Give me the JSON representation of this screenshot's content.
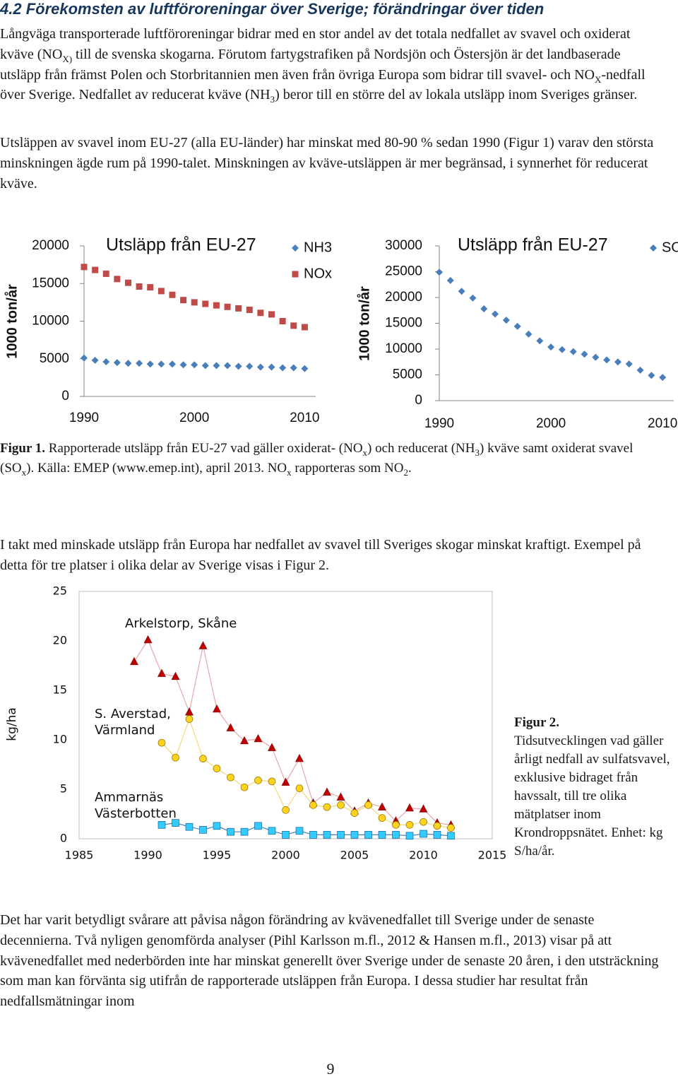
{
  "heading": "4.2 Förekomsten av luftföroreningar över Sverige; förändringar över tiden",
  "paragraphs": [
    [
      "Långväga transporterade luftföroreningar bidrar med en stor andel av det totala nedfallet av svavel och oxiderat kväve (NO",
      {
        "sub": "X)"
      },
      " till de svenska skogarna. Förutom fartygstrafiken på Nordsjön och Östersjön är det landbaserade utsläpp från främst Polen och Storbritannien men även från övriga Europa som bidrar till svavel- och NO",
      {
        "sub": "X"
      },
      "-nedfall över Sverige. Nedfallet av reducerat kväve (NH",
      {
        "sub": "3"
      },
      ") beror till en större del av lokala utsläpp inom Sveriges gränser."
    ],
    [
      "Utsläppen av svavel inom EU-27 (alla EU-länder) har minskat med 80-90 % sedan 1990 (Figur 1) varav den största minskningen ägde rum på 1990-talet. Minskningen av kväve-utsläppen är mer begränsad, i synnerhet för reducerat kväve."
    ],
    [
      "I takt med minskade utsläpp från Europa har nedfallet av svavel till Sveriges skogar minskat kraftigt. Exempel på detta för tre platser i olika delar av Sverige visas i Figur 2."
    ],
    [
      "Det har varit betydligt svårare att påvisa någon förändring av kvävenedfallet till Sverige under de senaste decennierna. Två nyligen genomförda analyser (Pihl Karlsson m.fl., 2012 & Hansen m.fl., 2013) visar på att kvävenedfallet med nederbörden inte har minskat generellt över Sverige under de senaste 20 åren, i den utsträckning som man kan förvänta sig utifrån de rapporterade utsläppen från Europa. I dessa studier har resultat från nedfallsmätningar inom"
    ]
  ],
  "figure1_caption": [
    {
      "b": "Figur 1."
    },
    " Rapporterade utsläpp från EU-27 vad gäller oxiderat- (NO",
    {
      "sub": "x"
    },
    ") och reducerat (NH",
    {
      "sub": "3"
    },
    ") kväve samt oxiderat svavel (SO",
    {
      "sub": "x"
    },
    "). Källa: EMEP (www.emep.int), april 2013. NO",
    {
      "sub": "x"
    },
    " rapporteras som NO",
    {
      "sub": "2"
    },
    "."
  ],
  "figure2_caption": {
    "label": "Figur 2.",
    "text": "Tidsutvecklingen vad gäller årligt nedfall av sulfatsvavel, exklusive bidraget från havssalt, till tre olika mätplatser inom Krondroppsnätet. Enhet: kg S/ha/år."
  },
  "page_number": "9",
  "chart_data": [
    {
      "type": "scatter",
      "title": "Utsläpp från EU-27",
      "y_label": "1000 ton/år",
      "legend": true,
      "x": [
        1990,
        1991,
        1992,
        1993,
        1994,
        1995,
        1996,
        1997,
        1998,
        1999,
        2000,
        2001,
        2002,
        2003,
        2004,
        2005,
        2006,
        2007,
        2008,
        2009,
        2010
      ],
      "xlim": [
        1990,
        2011
      ],
      "xticks": [
        1990,
        2000,
        2010
      ],
      "ylim": [
        0,
        20000
      ],
      "yticks": [
        0,
        5000,
        10000,
        15000,
        20000
      ],
      "series": [
        {
          "name": "NH3",
          "color": "#4a7ebb",
          "marker": "diamond",
          "values": [
            5100,
            4800,
            4600,
            4500,
            4400,
            4400,
            4300,
            4300,
            4300,
            4200,
            4200,
            4100,
            4100,
            4100,
            4000,
            4000,
            3900,
            3900,
            3800,
            3800,
            3700
          ]
        },
        {
          "name": "NOx",
          "color": "#be4b48",
          "marker": "square",
          "values": [
            17200,
            16800,
            16300,
            15600,
            15100,
            14600,
            14500,
            14000,
            13500,
            12800,
            12500,
            12300,
            12100,
            11900,
            11700,
            11500,
            11100,
            10900,
            10000,
            9400,
            9200
          ]
        }
      ]
    },
    {
      "type": "scatter",
      "title": "Utsläpp från EU-27",
      "y_label": "1000 ton/år",
      "legend": true,
      "x": [
        1990,
        1991,
        1992,
        1993,
        1994,
        1995,
        1996,
        1997,
        1998,
        1999,
        2000,
        2001,
        2002,
        2003,
        2004,
        2005,
        2006,
        2007,
        2008,
        2009,
        2010
      ],
      "xlim": [
        1990,
        2011
      ],
      "xticks": [
        1990,
        2000,
        2010
      ],
      "ylim": [
        0,
        30000
      ],
      "yticks": [
        0,
        5000,
        10000,
        15000,
        20000,
        25000,
        30000
      ],
      "series": [
        {
          "name": "SOx",
          "color": "#4a7ebb",
          "marker": "diamond",
          "values": [
            24900,
            23300,
            21200,
            19900,
            17800,
            16800,
            15600,
            14400,
            12900,
            11600,
            10400,
            9900,
            9500,
            9000,
            8400,
            7900,
            7500,
            7100,
            5900,
            4900,
            4500
          ]
        }
      ]
    },
    {
      "type": "line",
      "y_label": "kg/ha",
      "frame": true,
      "x": [
        1989,
        1990,
        1991,
        1992,
        1993,
        1994,
        1995,
        1996,
        1997,
        1998,
        1999,
        2000,
        2001,
        2002,
        2003,
        2004,
        2005,
        2006,
        2007,
        2008,
        2009,
        2010,
        2011,
        2012
      ],
      "xlim": [
        1985,
        2015
      ],
      "xticks": [
        1985,
        1990,
        1995,
        2000,
        2005,
        2010,
        2015
      ],
      "ylim": [
        0,
        25
      ],
      "yticks": [
        0,
        5,
        10,
        15,
        20,
        25
      ],
      "series": [
        {
          "name": "Arkelstorp, Skåne",
          "color": "#c00000",
          "line_color": "#e8a6a6",
          "marker": "triangle",
          "values": [
            17.9,
            20.1,
            16.7,
            16.4,
            12.8,
            19.5,
            13.1,
            11.2,
            9.9,
            10.1,
            9.2,
            5.7,
            8.1,
            3.6,
            4.7,
            4.2,
            2.8,
            3.6,
            3.2,
            1.8,
            3.1,
            3.0,
            1.6,
            1.4
          ]
        },
        {
          "name": "S. Averstad, Värmland",
          "color": "#ffd320",
          "line_color": "#f2d878",
          "marker": "circle",
          "values": [
            null,
            null,
            9.7,
            8.2,
            12.1,
            8.1,
            7.1,
            6.2,
            5.2,
            5.9,
            5.8,
            2.9,
            5.1,
            3.4,
            3.2,
            3.4,
            2.6,
            3.4,
            2.1,
            1.4,
            1.4,
            1.7,
            1.3,
            1.1
          ]
        },
        {
          "name": "Ammarnäs Västerbotten",
          "color": "#33ccff",
          "line_color": "#4a7ebb",
          "marker": "square",
          "values": [
            null,
            null,
            1.4,
            1.6,
            1.2,
            0.9,
            1.3,
            0.7,
            0.7,
            1.3,
            0.8,
            0.4,
            0.8,
            0.4,
            0.4,
            0.4,
            0.4,
            0.4,
            0.4,
            0.4,
            0.3,
            0.5,
            0.4,
            0.3
          ]
        }
      ]
    }
  ]
}
